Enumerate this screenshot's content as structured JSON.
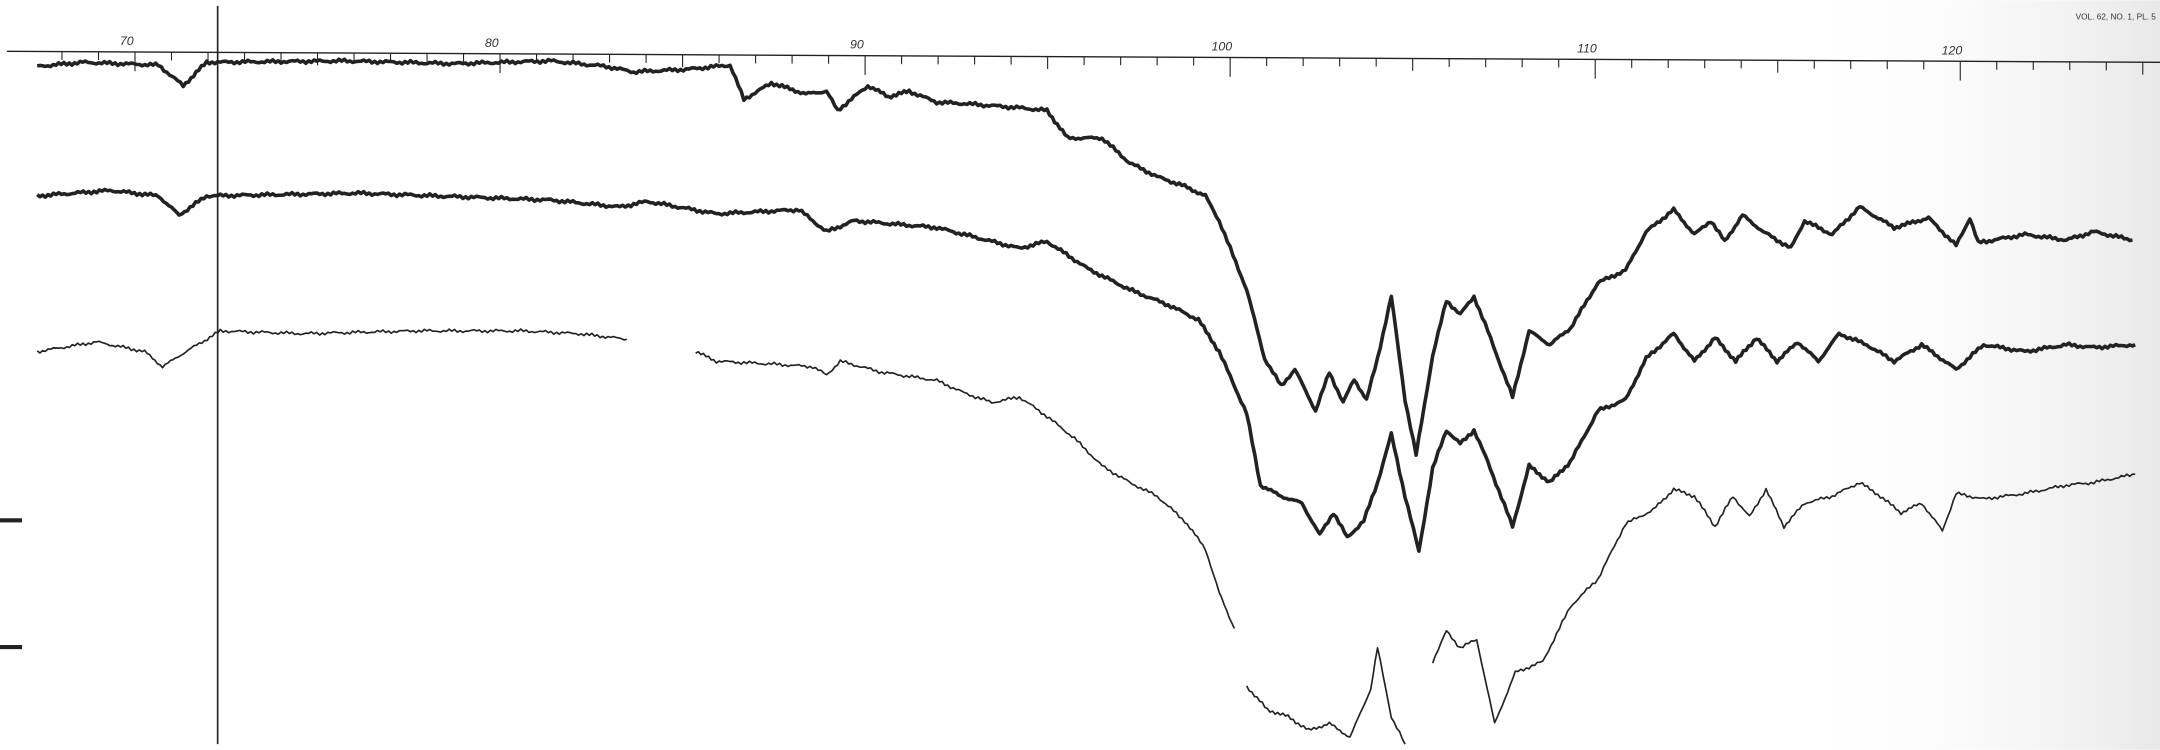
{
  "header": {
    "plate": "VOL. 62, NO. 1, PL. 5"
  },
  "axis": {
    "tick_labels": [
      "70",
      "80",
      "90",
      "100",
      "110",
      "120"
    ]
  }
}
